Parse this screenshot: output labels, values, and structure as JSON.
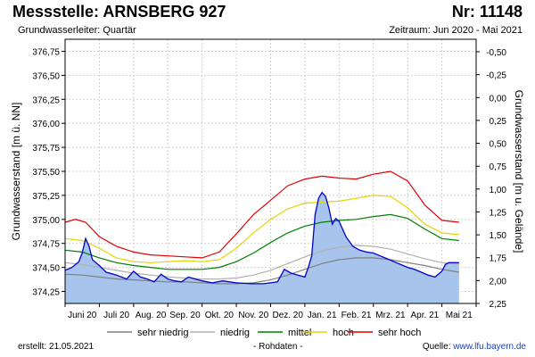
{
  "header": {
    "title": "Messstelle: ARNSBERG 927",
    "nr": "Nr: 11148",
    "aquifer": "Grundwasserleiter: Quartär",
    "period": "Zeitraum: Jun 2020 - Mai 2021"
  },
  "footer": {
    "created": "erstellt:  21.05.2021",
    "raw": "- Rohdaten -",
    "source_label": "Quelle: ",
    "source_url": "www.lfu.bayern.de"
  },
  "colors": {
    "measured_fill": "#a6c4ec",
    "measured_line": "#0000cc",
    "sehr_niedrig": "#808080",
    "niedrig": "#b0b0b0",
    "mittel": "#008000",
    "hoch": "#e8d400",
    "sehr_hoch": "#e00000",
    "grid": "#d0d0d0"
  },
  "chart_data": {
    "type": "area",
    "ylabel": "Grundwasserstand [m ü. NN]",
    "y2label": "Grundwasserstand [m u. Gelände]",
    "ylim": [
      374.125,
      376.875
    ],
    "y_ticks": [
      "374,25",
      "374,50",
      "374,75",
      "375,00",
      "375,25",
      "375,50",
      "375,75",
      "376,00",
      "376,25",
      "376,50",
      "376,75"
    ],
    "y2_ticks": [
      "-0,50",
      "-0,25",
      "0,00",
      "0,25",
      "0,50",
      "0,75",
      "1,00",
      "1,25",
      "1,50",
      "1,75",
      "2,00",
      "2,25"
    ],
    "x_months": [
      "Juni 20",
      "Juli 20",
      "Aug. 20",
      "Sep. 20",
      "Okt. 20",
      "Nov. 20",
      "Dez. 20",
      "Jan. 21",
      "Feb. 21",
      "Mrz. 21",
      "Apr. 21",
      "Mai 21"
    ],
    "grid": true,
    "legend_position": "bottom",
    "measured": {
      "x": [
        0.0,
        0.2,
        0.4,
        0.5,
        0.6,
        0.7,
        0.8,
        1.0,
        1.2,
        1.5,
        1.8,
        2.0,
        2.2,
        2.4,
        2.6,
        2.8,
        3.0,
        3.2,
        3.4,
        3.6,
        3.8,
        4.0,
        4.3,
        4.6,
        5.0,
        5.4,
        5.8,
        6.0,
        6.2,
        6.4,
        6.6,
        6.8,
        7.0,
        7.1,
        7.2,
        7.3,
        7.4,
        7.5,
        7.6,
        7.7,
        7.8,
        7.9,
        8.0,
        8.2,
        8.4,
        8.6,
        8.8,
        9.0,
        9.2,
        9.4,
        9.6,
        9.8,
        10.0,
        10.2,
        10.4,
        10.6,
        10.8,
        11.0,
        11.1,
        11.2,
        11.3,
        11.5
      ],
      "y": [
        374.47,
        374.5,
        374.56,
        374.65,
        374.8,
        374.72,
        374.58,
        374.52,
        374.45,
        374.42,
        374.38,
        374.46,
        374.4,
        374.38,
        374.35,
        374.43,
        374.38,
        374.36,
        374.35,
        374.4,
        374.38,
        374.36,
        374.34,
        374.36,
        374.34,
        374.33,
        374.33,
        374.34,
        374.35,
        374.48,
        374.44,
        374.42,
        374.4,
        374.5,
        374.62,
        375.05,
        375.22,
        375.28,
        375.24,
        375.12,
        374.95,
        375.01,
        374.98,
        374.82,
        374.72,
        374.68,
        374.66,
        374.65,
        374.62,
        374.59,
        374.56,
        374.53,
        374.5,
        374.48,
        374.45,
        374.42,
        374.4,
        374.46,
        374.53,
        374.55,
        374.55,
        374.55
      ]
    },
    "series": [
      {
        "name": "sehr niedrig",
        "color": "#808080",
        "x": [
          0.0,
          0.5,
          1.0,
          1.5,
          2.0,
          2.5,
          3.0,
          3.5,
          4.0,
          4.5,
          5.0,
          5.5,
          6.0,
          6.5,
          7.0,
          7.5,
          8.0,
          8.5,
          9.0,
          9.5,
          10.0,
          10.5,
          11.0,
          11.5
        ],
        "y": [
          374.43,
          374.42,
          374.4,
          374.38,
          374.37,
          374.36,
          374.35,
          374.35,
          374.34,
          374.33,
          374.33,
          374.34,
          374.37,
          374.42,
          374.48,
          374.54,
          374.58,
          374.6,
          374.6,
          374.58,
          374.55,
          374.52,
          374.48,
          374.45
        ]
      },
      {
        "name": "niedrig",
        "color": "#b0b0b0",
        "x": [
          0.0,
          0.5,
          1.0,
          1.5,
          2.0,
          2.5,
          3.0,
          3.5,
          4.0,
          4.5,
          5.0,
          5.5,
          6.0,
          6.5,
          7.0,
          7.5,
          8.0,
          8.5,
          9.0,
          9.5,
          10.0,
          10.5,
          11.0,
          11.5
        ],
        "y": [
          374.55,
          374.53,
          374.5,
          374.47,
          374.44,
          374.42,
          374.4,
          374.39,
          374.38,
          374.38,
          374.39,
          374.42,
          374.47,
          374.54,
          374.61,
          374.67,
          374.71,
          374.73,
          374.72,
          374.69,
          374.64,
          374.59,
          374.55,
          374.53
        ]
      },
      {
        "name": "mittel",
        "color": "#008000",
        "x": [
          0.0,
          0.5,
          1.0,
          1.5,
          2.0,
          2.5,
          3.0,
          3.5,
          4.0,
          4.5,
          5.0,
          5.5,
          6.0,
          6.5,
          7.0,
          7.5,
          8.0,
          8.5,
          9.0,
          9.5,
          10.0,
          10.5,
          11.0,
          11.5
        ],
        "y": [
          374.68,
          374.66,
          374.6,
          374.55,
          374.52,
          374.5,
          374.48,
          374.48,
          374.48,
          374.5,
          374.56,
          374.65,
          374.76,
          374.86,
          374.93,
          374.97,
          374.99,
          375.0,
          375.03,
          375.05,
          375.01,
          374.9,
          374.8,
          374.78
        ]
      },
      {
        "name": "hoch",
        "color": "#e8d400",
        "x": [
          0.0,
          0.5,
          1.0,
          1.5,
          2.0,
          2.5,
          3.0,
          3.5,
          4.0,
          4.5,
          5.0,
          5.5,
          6.0,
          6.5,
          7.0,
          7.5,
          8.0,
          8.5,
          9.0,
          9.5,
          10.0,
          10.5,
          11.0,
          11.5
        ],
        "y": [
          374.8,
          374.78,
          374.7,
          374.6,
          374.56,
          374.55,
          374.56,
          374.57,
          374.56,
          374.58,
          374.7,
          374.86,
          375.0,
          375.11,
          375.17,
          375.18,
          375.19,
          375.22,
          375.25,
          375.24,
          375.12,
          374.95,
          374.86,
          374.84
        ]
      },
      {
        "name": "sehr hoch",
        "color": "#e00000",
        "x": [
          0.0,
          0.3,
          0.6,
          1.0,
          1.5,
          2.0,
          2.5,
          3.0,
          3.5,
          4.0,
          4.5,
          5.0,
          5.5,
          6.0,
          6.5,
          7.0,
          7.5,
          8.0,
          8.5,
          9.0,
          9.5,
          10.0,
          10.5,
          11.0,
          11.5
        ],
        "y": [
          374.97,
          375.0,
          374.97,
          374.82,
          374.72,
          374.66,
          374.63,
          374.62,
          374.61,
          374.6,
          374.66,
          374.85,
          375.05,
          375.2,
          375.35,
          375.42,
          375.45,
          375.43,
          375.42,
          375.47,
          375.5,
          375.4,
          375.15,
          374.99,
          374.97
        ]
      }
    ]
  }
}
